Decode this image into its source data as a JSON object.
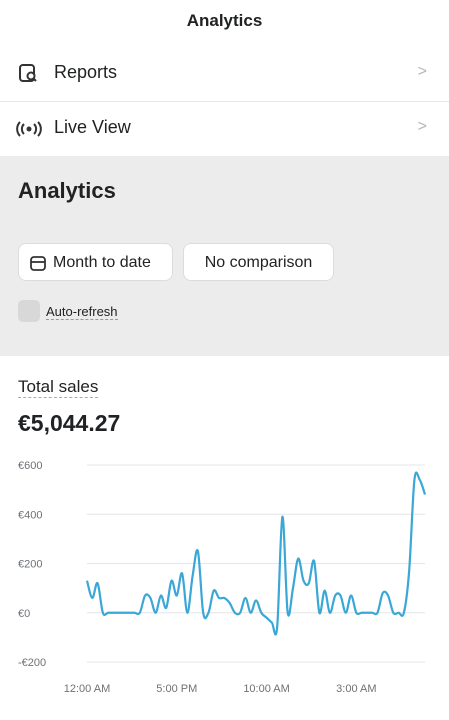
{
  "header": {
    "title": "Analytics"
  },
  "menu": [
    {
      "label": "Reports"
    },
    {
      "label": "Live View"
    }
  ],
  "analytics": {
    "title": "Analytics",
    "date_button": "Month to date",
    "comparison_button": "No comparison",
    "auto_refresh": "Auto-refresh"
  },
  "metric": {
    "label": "Total sales",
    "value": "€5,044.27"
  },
  "chart_data": {
    "type": "line",
    "color": "#3aa7d6",
    "categories": [
      "12:00 AM",
      null,
      null,
      null,
      null,
      null,
      null,
      null,
      null,
      null,
      null,
      null,
      null,
      null,
      null,
      null,
      null,
      "5:00 PM",
      null,
      null,
      null,
      null,
      null,
      null,
      null,
      null,
      null,
      null,
      null,
      null,
      null,
      null,
      null,
      null,
      "10:00 AM",
      null,
      null,
      null,
      null,
      null,
      null,
      null,
      null,
      null,
      null,
      null,
      null,
      null,
      null,
      null,
      null,
      "3:00 AM",
      null,
      null,
      null,
      null,
      null,
      null,
      null,
      null,
      null,
      null,
      null,
      null,
      null
    ],
    "values": [
      130,
      60,
      120,
      0,
      0,
      0,
      0,
      0,
      0,
      0,
      0,
      70,
      60,
      0,
      70,
      20,
      130,
      70,
      160,
      0,
      150,
      250,
      0,
      0,
      90,
      60,
      60,
      40,
      0,
      0,
      60,
      0,
      50,
      0,
      -20,
      -40,
      -60,
      390,
      0,
      100,
      220,
      130,
      120,
      210,
      0,
      90,
      0,
      70,
      70,
      0,
      70,
      0,
      0,
      0,
      0,
      0,
      80,
      70,
      0,
      0,
      0,
      170,
      540,
      540,
      480
    ],
    "ylim": [
      -200,
      600
    ],
    "yticks": [
      {
        "value": 600,
        "label": "€600"
      },
      {
        "value": 400,
        "label": "€400"
      },
      {
        "value": 200,
        "label": "€200"
      },
      {
        "value": 0,
        "label": "€0"
      },
      {
        "value": -200,
        "label": "-€200"
      }
    ],
    "grid": true
  }
}
